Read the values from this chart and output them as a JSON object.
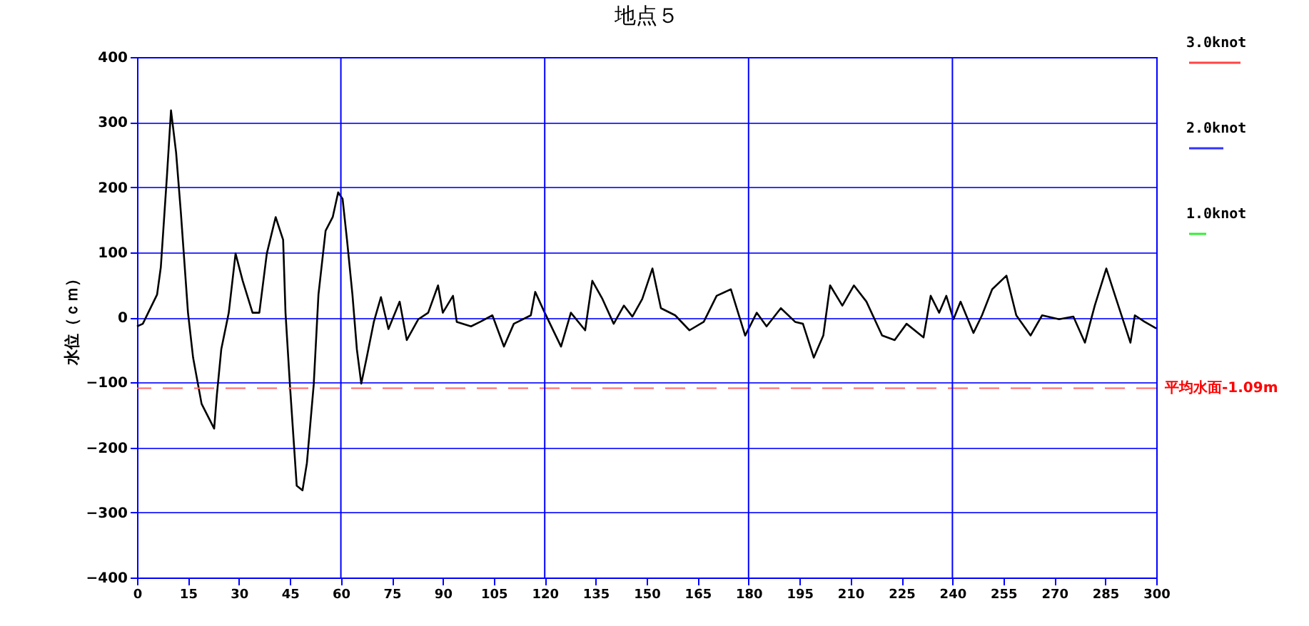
{
  "chart_data": {
    "type": "line",
    "title": "地点５",
    "ylabel": "水位（ｃｍ）",
    "annotations": [
      "3.0knot",
      "2.0knot",
      "1.0knot"
    ],
    "x": [
      0,
      1.7,
      5.9,
      7,
      8.8,
      10,
      11.5,
      12.9,
      15,
      16.5,
      19,
      22.7,
      23.5,
      24.8,
      27,
      29,
      31.1,
      34,
      36,
      38.2,
      40.8,
      43,
      43.7,
      45,
      47,
      48.7,
      50,
      52,
      53.4,
      55.5,
      57.6,
      59.2,
      60.5,
      61.8,
      63.4,
      64.7,
      66,
      67.6,
      69.7,
      71.8,
      74,
      77.3,
      79.4,
      82.8,
      85.7,
      88.6,
      90,
      93,
      94.1,
      98.3,
      101,
      104.6,
      108,
      110.9,
      115.9,
      117.2,
      120,
      124.8,
      127.7,
      131.9,
      134,
      137,
      140.3,
      143.3,
      145.8,
      148.7,
      151.7,
      154.2,
      158.4,
      162.6,
      166.8,
      170.6,
      174.8,
      179,
      182.4,
      185.3,
      189.5,
      193.7,
      196,
      199.2,
      202,
      204,
      207.6,
      211,
      214.7,
      219.3,
      223,
      226.5,
      231.5,
      233.6,
      236.1,
      238.2,
      240.3,
      242.4,
      246.2,
      248.7,
      251.7,
      255.9,
      258.8,
      263,
      266.4,
      271.4,
      275.6,
      279,
      281.9,
      285.3,
      288.2,
      292.4,
      293.7,
      296.6,
      300
    ],
    "series": [
      {
        "color": "#000000",
        "values": [
          -14,
          -10,
          35,
          77,
          217,
          318,
          253,
          161,
          7,
          -62,
          -133,
          -171,
          -119,
          -49,
          7,
          98,
          56,
          7,
          7,
          98,
          154,
          119,
          7,
          -104,
          -259,
          -266,
          -224,
          -104,
          35,
          133,
          154,
          192,
          182,
          119,
          35,
          -49,
          -102,
          -62,
          -7,
          31,
          -18,
          24,
          -35,
          -3,
          7,
          49,
          7,
          33,
          -7,
          -14,
          -7,
          3,
          -45,
          -10,
          3,
          39,
          7,
          -45,
          7,
          -20,
          56,
          28,
          -10,
          18,
          1,
          28,
          75,
          14,
          3,
          -20,
          -7,
          33,
          43,
          -28,
          7,
          -14,
          14,
          -7,
          -10,
          -62,
          -28,
          49,
          18,
          49,
          24,
          -28,
          -35,
          -10,
          -31,
          33,
          7,
          33,
          -3,
          24,
          -24,
          3,
          43,
          64,
          3,
          -28,
          3,
          -3,
          1,
          -39,
          18,
          75,
          28,
          -39,
          3,
          -7,
          -17
        ]
      }
    ],
    "xlim": [
      0,
      300
    ],
    "xticks": [
      0,
      15,
      30,
      45,
      60,
      75,
      90,
      105,
      120,
      135,
      150,
      165,
      180,
      195,
      210,
      225,
      240,
      255,
      270,
      285,
      300
    ],
    "ylim": [
      -400,
      400
    ],
    "yticks": [
      -400,
      -300,
      -200,
      -100,
      0,
      100,
      200,
      300,
      400
    ],
    "grid": "y",
    "line_style": "solid",
    "ref_lines": [
      {
        "axis": "y",
        "value": -109,
        "label": "平均水面-1.09m",
        "color": "#ff6666",
        "line_style": "dashed"
      },
      {
        "axis": "x",
        "value": 60,
        "label": null,
        "color": "#0000ff",
        "line_style": "solid"
      },
      {
        "axis": "x",
        "value": 120,
        "label": null,
        "color": "#0000ff",
        "line_style": "solid"
      },
      {
        "axis": "x",
        "value": 180,
        "label": null,
        "color": "#0000ff",
        "line_style": "solid"
      },
      {
        "axis": "x",
        "value": 240,
        "label": null,
        "color": "#0000ff",
        "line_style": "solid"
      }
    ]
  }
}
